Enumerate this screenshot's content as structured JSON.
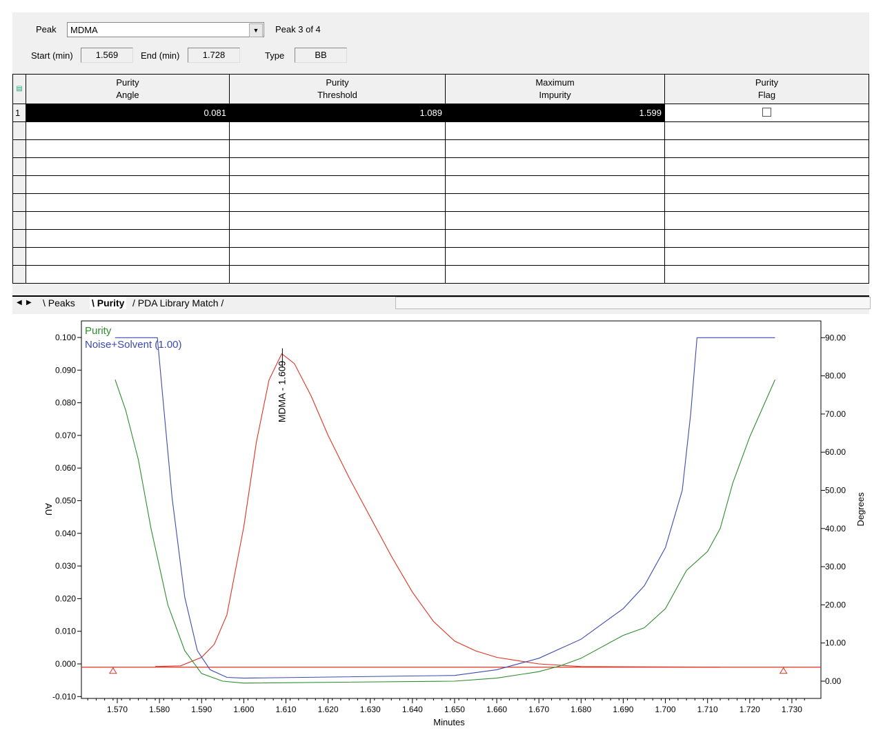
{
  "header": {
    "peak_label": "Peak",
    "peak_value": "MDMA",
    "peak_position": "Peak 3 of 4",
    "start_label": "Start (min)",
    "start_value": "1.569",
    "end_label": "End (min)",
    "end_value": "1.728",
    "type_label": "Type",
    "type_value": "BB"
  },
  "table": {
    "columns": [
      [
        "Purity",
        "Angle"
      ],
      [
        "Purity",
        "Threshold"
      ],
      [
        "Maximum",
        "Impurity"
      ],
      [
        "Purity",
        "Flag"
      ]
    ],
    "rows": [
      {
        "index": "1",
        "purity_angle": "0.081",
        "purity_threshold": "1.089",
        "maximum_impurity": "1.599",
        "purity_flag": false
      }
    ]
  },
  "tabs": [
    {
      "label": "Peaks",
      "active": false
    },
    {
      "label": "Purity",
      "active": true
    },
    {
      "label": "PDA Library Match",
      "active": false
    }
  ],
  "chart_data": {
    "type": "line",
    "xlabel": "Minutes",
    "ylabel": "AU",
    "y2label": "Degrees",
    "xlim": [
      1.562,
      1.735
    ],
    "ylim": [
      -0.011,
      0.105
    ],
    "y2lim": [
      -5,
      95
    ],
    "xticks": [
      1.57,
      1.58,
      1.59,
      1.6,
      1.61,
      1.62,
      1.63,
      1.64,
      1.65,
      1.66,
      1.67,
      1.68,
      1.69,
      1.7,
      1.71,
      1.72,
      1.73
    ],
    "yticks": [
      0.1,
      0.09,
      0.08,
      0.07,
      0.06,
      0.05,
      0.04,
      0.03,
      0.02,
      0.01,
      0.0,
      -0.01
    ],
    "y2ticks": [
      90,
      80,
      70,
      60,
      50,
      40,
      30,
      20,
      10,
      0
    ],
    "peak_annotation": {
      "label": "MDMA - 1.609",
      "x": 1.609,
      "y": 0.095
    },
    "baseline": {
      "y": -0.001,
      "marks": [
        1.569,
        1.728
      ]
    },
    "colors": {
      "chromatogram": "#e03020",
      "purity": "#2e8b2e",
      "noise": "#3c4ab0"
    },
    "series": [
      {
        "name": "",
        "axis": "left",
        "color": "#e03020",
        "x": [
          1.579,
          1.585,
          1.59,
          1.593,
          1.596,
          1.6,
          1.603,
          1.606,
          1.609,
          1.612,
          1.616,
          1.62,
          1.625,
          1.63,
          1.635,
          1.64,
          1.645,
          1.65,
          1.655,
          1.66,
          1.665,
          1.67,
          1.68,
          1.713
        ],
        "y": [
          -0.0008,
          -0.0006,
          0.002,
          0.006,
          0.015,
          0.042,
          0.068,
          0.087,
          0.095,
          0.092,
          0.082,
          0.07,
          0.057,
          0.045,
          0.033,
          0.022,
          0.013,
          0.007,
          0.004,
          0.002,
          0.001,
          0.0,
          -0.0008,
          -0.001
        ]
      },
      {
        "name": "Purity",
        "axis": "right",
        "color": "#2e8b2e",
        "x": [
          1.5695,
          1.572,
          1.575,
          1.578,
          1.582,
          1.586,
          1.59,
          1.595,
          1.6,
          1.65,
          1.66,
          1.67,
          1.675,
          1.68,
          1.69,
          1.695,
          1.7,
          1.705,
          1.71,
          1.713,
          1.716,
          1.72,
          1.726
        ],
        "y": [
          79,
          71,
          58,
          40,
          20,
          8,
          2,
          0,
          -0.5,
          0,
          0.8,
          2.5,
          4,
          6,
          12,
          14,
          19,
          29,
          34,
          40,
          52,
          64,
          79
        ]
      },
      {
        "name": "Noise+Solvent (1.00)",
        "axis": "right",
        "color": "#3c4ab0",
        "x": [
          1.5695,
          1.5795,
          1.581,
          1.583,
          1.586,
          1.589,
          1.592,
          1.596,
          1.6,
          1.65,
          1.66,
          1.67,
          1.68,
          1.69,
          1.695,
          1.7,
          1.704,
          1.706,
          1.7075,
          1.726
        ],
        "y": [
          90,
          90,
          72,
          48,
          22,
          8,
          3,
          1,
          0.8,
          1.5,
          3,
          6,
          11,
          19,
          25,
          35,
          50,
          70,
          90,
          90
        ]
      }
    ]
  }
}
